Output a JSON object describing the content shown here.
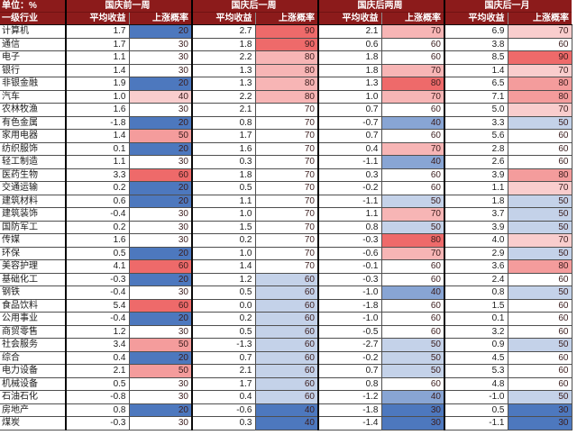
{
  "header": {
    "unit_label": "单位：%",
    "industry_label": "一级行业",
    "groups": [
      {
        "label": "国庆前一周",
        "return_label": "平均收益",
        "prob_label": "上涨概率"
      },
      {
        "label": "国庆后一周",
        "return_label": "平均收益",
        "prob_label": "上涨概率"
      },
      {
        "label": "国庆后两周",
        "return_label": "平均收益",
        "prob_label": "上涨概率"
      },
      {
        "label": "国庆后一月",
        "return_label": "平均收益",
        "prob_label": "上涨概率"
      }
    ]
  },
  "colors": {
    "header_bg": "#8C1B1B",
    "header_text": "#FFFFFF",
    "heat_low": "#4D78BE",
    "heat_mid": "#FFFFFF",
    "heat_high": "#EE6A6A",
    "grid_line": "#4F4F4F",
    "group_border": "#0A0A0A"
  },
  "heat_scales": [
    {
      "min": 20,
      "mid": 30,
      "max": 60
    },
    {
      "min": 40,
      "mid": 70,
      "max": 90
    },
    {
      "min": 30,
      "mid": 60,
      "max": 80
    },
    {
      "min": 30,
      "mid": 60,
      "max": 90
    }
  ],
  "chart_data": {
    "type": "table",
    "unit": "%",
    "row_header": "一级行业",
    "column_groups": [
      "国庆前一周",
      "国庆后一周",
      "国庆后两周",
      "国庆后一月"
    ],
    "sub_columns": [
      "平均收益",
      "上涨概率"
    ],
    "rows": [
      {
        "industry": "计算机",
        "cells": [
          1.7,
          20,
          2.7,
          90,
          2.1,
          70,
          6.9,
          70
        ]
      },
      {
        "industry": "通信",
        "cells": [
          1.7,
          30,
          1.8,
          90,
          0.6,
          60,
          3.8,
          60
        ]
      },
      {
        "industry": "电子",
        "cells": [
          1.1,
          30,
          2.2,
          80,
          1.8,
          60,
          8.5,
          90
        ]
      },
      {
        "industry": "银行",
        "cells": [
          1.4,
          30,
          1.3,
          80,
          1.8,
          70,
          1.4,
          70
        ]
      },
      {
        "industry": "非银金融",
        "cells": [
          1.9,
          20,
          1.3,
          80,
          1.3,
          80,
          6.5,
          80
        ]
      },
      {
        "industry": "汽车",
        "cells": [
          1.0,
          40,
          2.2,
          80,
          1.0,
          70,
          7.1,
          80
        ]
      },
      {
        "industry": "农林牧渔",
        "cells": [
          1.6,
          30,
          2.1,
          70,
          0.7,
          60,
          5.0,
          70
        ]
      },
      {
        "industry": "有色金属",
        "cells": [
          -1.8,
          20,
          0.8,
          70,
          -0.7,
          40,
          3.3,
          50
        ]
      },
      {
        "industry": "家用电器",
        "cells": [
          1.4,
          50,
          1.7,
          70,
          0.7,
          60,
          5.6,
          60
        ]
      },
      {
        "industry": "纺织服饰",
        "cells": [
          0.1,
          20,
          1.6,
          70,
          0.4,
          70,
          2.8,
          60
        ]
      },
      {
        "industry": "轻工制造",
        "cells": [
          1.1,
          30,
          0.3,
          70,
          -1.1,
          40,
          2.6,
          60
        ]
      },
      {
        "industry": "医药生物",
        "cells": [
          3.3,
          60,
          1.8,
          70,
          0.3,
          60,
          3.9,
          80
        ]
      },
      {
        "industry": "交通运输",
        "cells": [
          0.2,
          20,
          0.5,
          70,
          -0.2,
          60,
          1.1,
          70
        ]
      },
      {
        "industry": "建筑材料",
        "cells": [
          0.6,
          20,
          1.1,
          70,
          -1.1,
          50,
          1.8,
          50
        ]
      },
      {
        "industry": "建筑装饰",
        "cells": [
          -0.4,
          30,
          1.0,
          70,
          1.1,
          70,
          3.7,
          50
        ]
      },
      {
        "industry": "国防军工",
        "cells": [
          0.2,
          30,
          1.5,
          70,
          0.8,
          50,
          3.9,
          50
        ]
      },
      {
        "industry": "传媒",
        "cells": [
          1.6,
          30,
          0.2,
          70,
          -0.3,
          80,
          4.0,
          70
        ]
      },
      {
        "industry": "环保",
        "cells": [
          0.5,
          20,
          1.0,
          70,
          -0.6,
          70,
          2.9,
          50
        ]
      },
      {
        "industry": "美容护理",
        "cells": [
          4.1,
          60,
          1.4,
          70,
          -0.1,
          60,
          3.6,
          80
        ]
      },
      {
        "industry": "基础化工",
        "cells": [
          -0.3,
          20,
          1.2,
          60,
          -0.3,
          60,
          2.4,
          60
        ]
      },
      {
        "industry": "钢铁",
        "cells": [
          -0.4,
          30,
          0.5,
          60,
          -1.0,
          40,
          0.8,
          50
        ]
      },
      {
        "industry": "食品饮料",
        "cells": [
          5.4,
          60,
          0.0,
          60,
          -1.8,
          60,
          1.5,
          60
        ]
      },
      {
        "industry": "公用事业",
        "cells": [
          -0.4,
          20,
          0.2,
          60,
          -1.0,
          60,
          0.1,
          60
        ]
      },
      {
        "industry": "商贸零售",
        "cells": [
          1.2,
          30,
          0.5,
          60,
          -0.5,
          60,
          3.2,
          60
        ]
      },
      {
        "industry": "社会服务",
        "cells": [
          3.4,
          50,
          -1.3,
          60,
          -2.7,
          50,
          0.9,
          50
        ]
      },
      {
        "industry": "综合",
        "cells": [
          0.4,
          20,
          0.7,
          60,
          -0.2,
          50,
          4.5,
          60
        ]
      },
      {
        "industry": "电力设备",
        "cells": [
          2.1,
          50,
          2.1,
          60,
          0.7,
          50,
          5.3,
          60
        ]
      },
      {
        "industry": "机械设备",
        "cells": [
          0.5,
          30,
          1.7,
          60,
          0.8,
          60,
          4.8,
          60
        ]
      },
      {
        "industry": "石油石化",
        "cells": [
          -0.8,
          30,
          0.4,
          60,
          -1.2,
          40,
          -1.0,
          50
        ]
      },
      {
        "industry": "房地产",
        "cells": [
          0.8,
          20,
          -0.6,
          40,
          -1.8,
          30,
          0.5,
          30
        ]
      },
      {
        "industry": "煤炭",
        "cells": [
          -0.3,
          30,
          0.3,
          40,
          -1.4,
          30,
          -1.1,
          30
        ]
      }
    ]
  }
}
